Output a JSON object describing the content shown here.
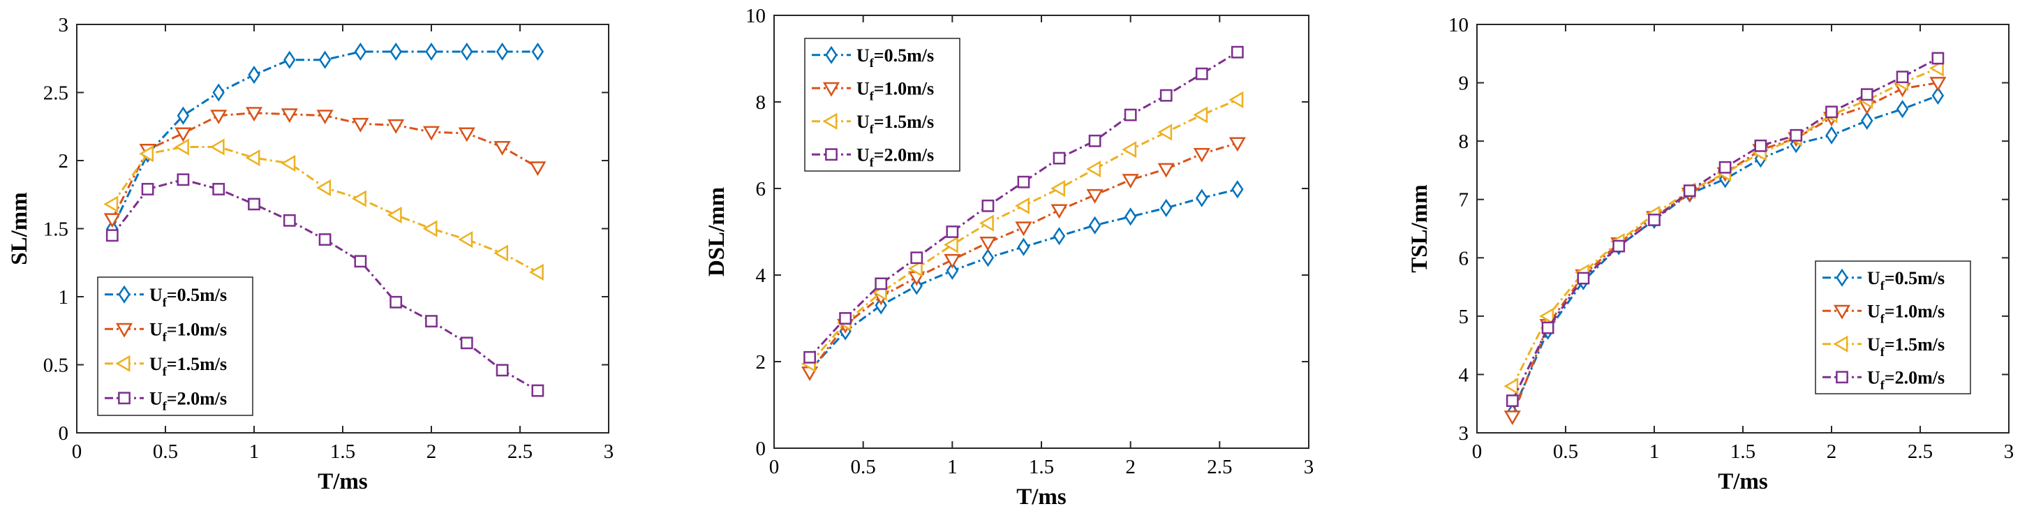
{
  "colors": {
    "s1": "#0072BD",
    "s2": "#D95319",
    "s3": "#EDB120",
    "s4": "#7E2F8E"
  },
  "chart_data": [
    {
      "type": "line",
      "xlabel": "T/ms",
      "ylabel": "SL/mm",
      "xlim": [
        0,
        3
      ],
      "ylim": [
        0,
        3
      ],
      "xticks": [
        "0",
        "0.5",
        "1",
        "1.5",
        "2",
        "2.5",
        "3"
      ],
      "yticks": [
        "0",
        "0.5",
        "1",
        "1.5",
        "2",
        "2.5",
        "3"
      ],
      "legend_position": "bottom-left",
      "x": [
        0.2,
        0.4,
        0.6,
        0.8,
        1.0,
        1.2,
        1.4,
        1.6,
        1.8,
        2.0,
        2.2,
        2.4,
        2.6
      ],
      "series": [
        {
          "name_main": "U",
          "name_sub": "f",
          "name_rest": "=0.5m/s",
          "marker": "diamond",
          "color_key": "s1",
          "values": [
            1.5,
            2.05,
            2.33,
            2.5,
            2.63,
            2.74,
            2.74,
            2.8,
            2.8,
            2.8,
            2.8,
            2.8,
            2.8
          ]
        },
        {
          "name_main": "U",
          "name_sub": "f",
          "name_rest": "=1.0m/s",
          "marker": "triangle-down",
          "color_key": "s2",
          "values": [
            1.57,
            2.08,
            2.2,
            2.33,
            2.35,
            2.34,
            2.33,
            2.27,
            2.26,
            2.21,
            2.2,
            2.1,
            1.95
          ]
        },
        {
          "name_main": "U",
          "name_sub": "f",
          "name_rest": "=1.5m/s",
          "marker": "triangle-left",
          "color_key": "s3",
          "values": [
            1.68,
            2.05,
            2.1,
            2.1,
            2.02,
            1.98,
            1.8,
            1.72,
            1.6,
            1.5,
            1.42,
            1.32,
            1.18
          ]
        },
        {
          "name_main": "U",
          "name_sub": "f",
          "name_rest": "=2.0m/s",
          "marker": "square",
          "color_key": "s4",
          "values": [
            1.45,
            1.79,
            1.86,
            1.79,
            1.68,
            1.56,
            1.42,
            1.26,
            0.96,
            0.82,
            0.66,
            0.46,
            0.31
          ]
        }
      ]
    },
    {
      "type": "line",
      "xlabel": "T/ms",
      "ylabel": "DSL/mm",
      "xlim": [
        0,
        3
      ],
      "ylim": [
        0,
        10
      ],
      "xticks": [
        "0",
        "0.5",
        "1",
        "1.5",
        "2",
        "2.5",
        "3"
      ],
      "yticks": [
        "0",
        "2",
        "4",
        "6",
        "8",
        "10"
      ],
      "legend_position": "top-left",
      "x": [
        0.2,
        0.4,
        0.6,
        0.8,
        1.0,
        1.2,
        1.4,
        1.6,
        1.8,
        2.0,
        2.2,
        2.4,
        2.6
      ],
      "series": [
        {
          "name_main": "U",
          "name_sub": "f",
          "name_rest": "=0.5m/s",
          "marker": "diamond",
          "color_key": "s1",
          "values": [
            1.8,
            2.7,
            3.3,
            3.75,
            4.1,
            4.4,
            4.65,
            4.9,
            5.15,
            5.35,
            5.55,
            5.78,
            5.98
          ]
        },
        {
          "name_main": "U",
          "name_sub": "f",
          "name_rest": "=1.0m/s",
          "marker": "triangle-down",
          "color_key": "s2",
          "values": [
            1.75,
            2.85,
            3.5,
            3.95,
            4.35,
            4.75,
            5.1,
            5.5,
            5.85,
            6.2,
            6.45,
            6.8,
            7.05
          ]
        },
        {
          "name_main": "U",
          "name_sub": "f",
          "name_rest": "=1.5m/s",
          "marker": "triangle-left",
          "color_key": "s3",
          "values": [
            1.95,
            2.9,
            3.6,
            4.15,
            4.7,
            5.2,
            5.6,
            6.0,
            6.45,
            6.9,
            7.3,
            7.7,
            8.05
          ]
        },
        {
          "name_main": "U",
          "name_sub": "f",
          "name_rest": "=2.0m/s",
          "marker": "square",
          "color_key": "s4",
          "values": [
            2.1,
            3.0,
            3.8,
            4.4,
            5.0,
            5.6,
            6.15,
            6.7,
            7.1,
            7.7,
            8.15,
            8.65,
            9.15
          ]
        }
      ]
    },
    {
      "type": "line",
      "xlabel": "T/ms",
      "ylabel": "TSL/mm",
      "xlim": [
        0,
        3
      ],
      "ylim": [
        3,
        10
      ],
      "xticks": [
        "0",
        "0.5",
        "1",
        "1.5",
        "2",
        "2.5",
        "3"
      ],
      "yticks": [
        "3",
        "4",
        "5",
        "6",
        "7",
        "8",
        "9",
        "10"
      ],
      "legend_position": "bottom-right",
      "x": [
        0.2,
        0.4,
        0.6,
        0.8,
        1.0,
        1.2,
        1.4,
        1.6,
        1.8,
        2.0,
        2.2,
        2.4,
        2.6
      ],
      "series": [
        {
          "name_main": "U",
          "name_sub": "f",
          "name_rest": "=0.5m/s",
          "marker": "diamond",
          "color_key": "s1",
          "values": [
            3.35,
            4.75,
            5.6,
            6.2,
            6.65,
            7.1,
            7.35,
            7.7,
            7.95,
            8.1,
            8.35,
            8.55,
            8.78
          ]
        },
        {
          "name_main": "U",
          "name_sub": "f",
          "name_rest": "=1.0m/s",
          "marker": "triangle-down",
          "color_key": "s2",
          "values": [
            3.28,
            4.85,
            5.7,
            6.25,
            6.7,
            7.1,
            7.45,
            7.85,
            8.05,
            8.4,
            8.6,
            8.9,
            9.0
          ]
        },
        {
          "name_main": "U",
          "name_sub": "f",
          "name_rest": "=1.5m/s",
          "marker": "triangle-left",
          "color_key": "s3",
          "values": [
            3.8,
            5.0,
            5.75,
            6.28,
            6.75,
            7.15,
            7.45,
            7.8,
            8.05,
            8.45,
            8.7,
            9.0,
            9.25
          ]
        },
        {
          "name_main": "U",
          "name_sub": "f",
          "name_rest": "=2.0m/s",
          "marker": "square",
          "color_key": "s4",
          "values": [
            3.55,
            4.8,
            5.65,
            6.2,
            6.65,
            7.15,
            7.55,
            7.92,
            8.1,
            8.5,
            8.8,
            9.1,
            9.42
          ]
        }
      ]
    }
  ]
}
